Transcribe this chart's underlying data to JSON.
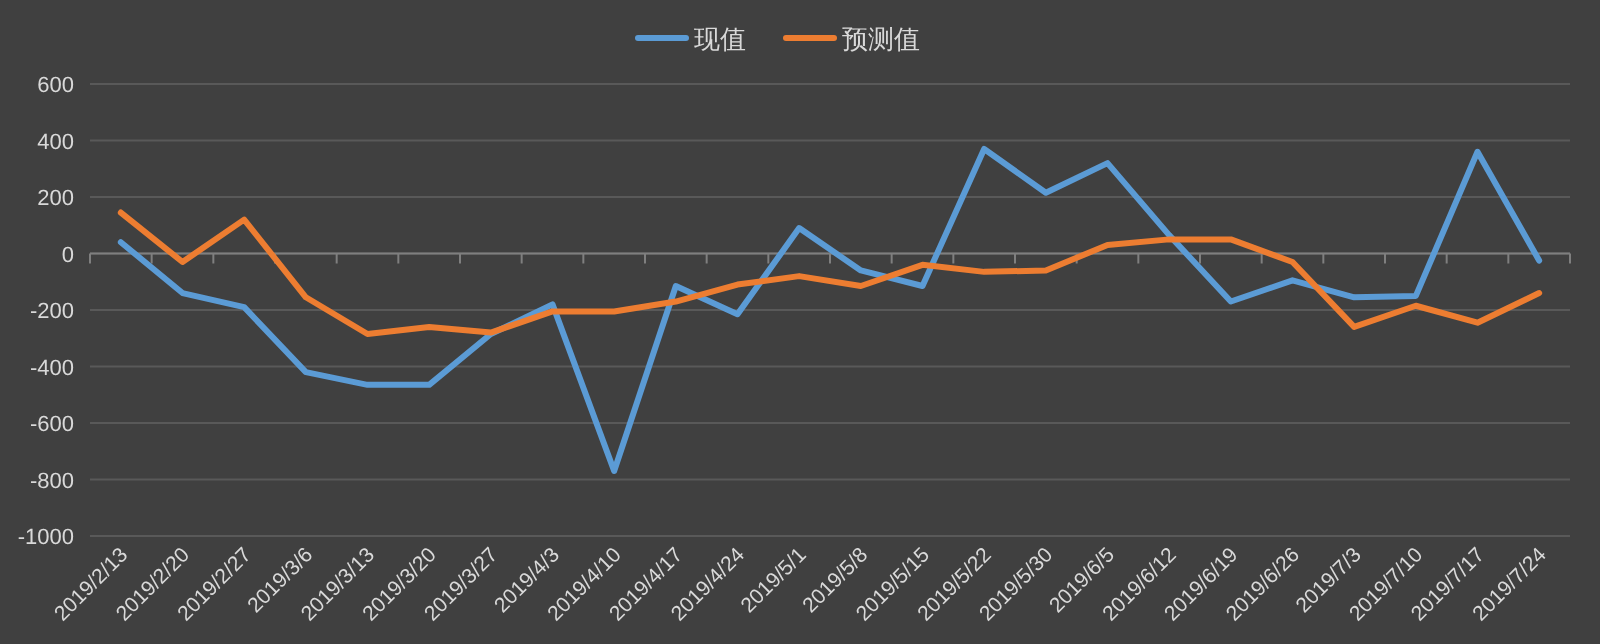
{
  "chart_data": {
    "type": "line",
    "categories": [
      "2019/2/13",
      "2019/2/20",
      "2019/2/27",
      "2019/3/6",
      "2019/3/13",
      "2019/3/20",
      "2019/3/27",
      "2019/4/3",
      "2019/4/10",
      "2019/4/17",
      "2019/4/24",
      "2019/5/1",
      "2019/5/8",
      "2019/5/15",
      "2019/5/22",
      "2019/5/30",
      "2019/6/5",
      "2019/6/12",
      "2019/6/19",
      "2019/6/26",
      "2019/7/3",
      "2019/7/10",
      "2019/7/17",
      "2019/7/24"
    ],
    "series": [
      {
        "name": "现值",
        "color": "#5b9bd5",
        "values": [
          40,
          -140,
          -190,
          -420,
          -465,
          -465,
          -285,
          -180,
          -770,
          -115,
          -215,
          90,
          -60,
          -115,
          370,
          215,
          320,
          65,
          -170,
          -95,
          -155,
          -150,
          360,
          -25
        ]
      },
      {
        "name": "预测值",
        "color": "#ed7d31",
        "values": [
          145,
          -30,
          120,
          -155,
          -285,
          -260,
          -280,
          -205,
          -205,
          -170,
          -110,
          -80,
          -115,
          -40,
          -65,
          -60,
          30,
          50,
          50,
          -30,
          -260,
          -185,
          -245,
          -140
        ]
      }
    ],
    "ylim": [
      -1000,
      600
    ],
    "yticks": [
      -1000,
      -800,
      -600,
      -400,
      -200,
      0,
      200,
      400,
      600
    ],
    "grid": "y",
    "legend": "top",
    "marker": "none",
    "line_style": "solid"
  }
}
